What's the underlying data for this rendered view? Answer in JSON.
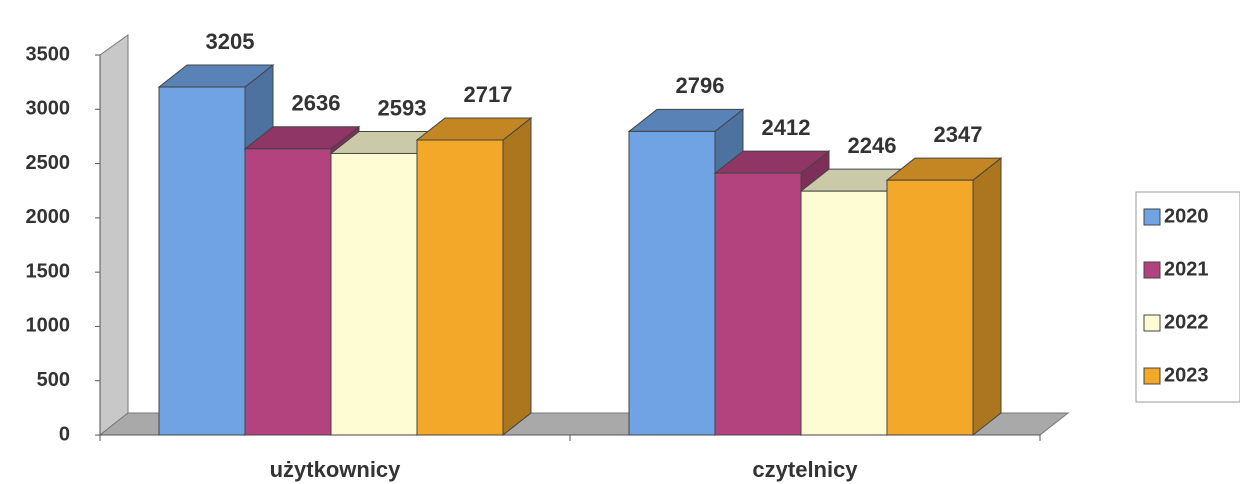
{
  "chart_data": {
    "type": "bar3d",
    "categories": [
      "użytkownicy",
      "czytelnicy"
    ],
    "series": [
      {
        "name": "2020",
        "color": "#6fa3e3",
        "values": [
          3205,
          2796
        ]
      },
      {
        "name": "2021",
        "color": "#b3437f",
        "values": [
          2636,
          2412
        ]
      },
      {
        "name": "2022",
        "color": "#fdfcd2",
        "values": [
          2593,
          2246
        ]
      },
      {
        "name": "2023",
        "color": "#f4a82a",
        "values": [
          2717,
          2347
        ]
      }
    ],
    "ylim": [
      0,
      3500
    ],
    "yticks": [
      0,
      500,
      1000,
      1500,
      2000,
      2500,
      3000,
      3500
    ],
    "grid": false,
    "legend": "right"
  }
}
